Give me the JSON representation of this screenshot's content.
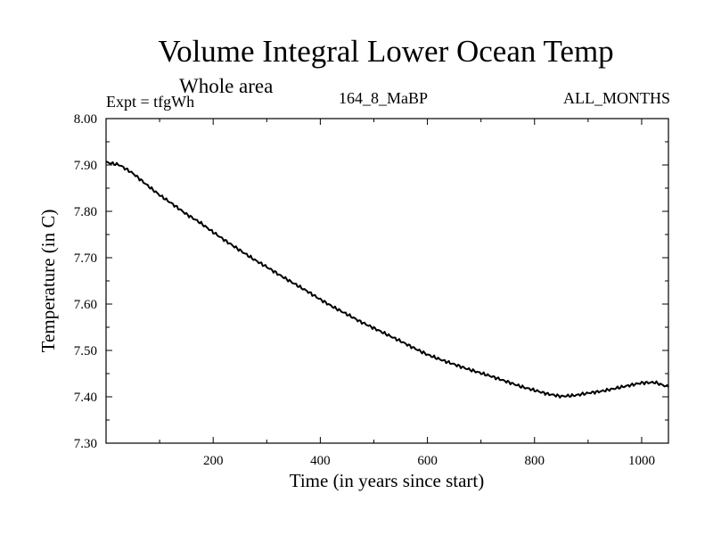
{
  "chart_data": {
    "type": "line",
    "title": "Volume Integral Lower Ocean Temp",
    "subtitle": "Whole area",
    "annotations": {
      "left": "Expt = tfgWh",
      "center": "164_8_MaBP",
      "right": "ALL_MONTHS"
    },
    "xlabel": "Time (in years since start)",
    "ylabel": "Temperature (in C)",
    "xlim": [
      0,
      1050
    ],
    "ylim": [
      7.3,
      8.0
    ],
    "x_ticks": [
      200,
      400,
      600,
      800,
      1000
    ],
    "x_tick_labels": [
      "200",
      "400",
      "600",
      "800",
      "1000"
    ],
    "y_ticks": [
      7.3,
      7.4,
      7.5,
      7.6,
      7.7,
      7.8,
      7.9,
      8.0
    ],
    "y_tick_labels": [
      "7.30",
      "7.40",
      "7.50",
      "7.60",
      "7.70",
      "7.80",
      "7.90",
      "8.00"
    ],
    "grid": false,
    "series": [
      {
        "name": "tfgWh",
        "x": [
          0,
          25,
          50,
          75,
          100,
          125,
          150,
          175,
          200,
          225,
          250,
          275,
          300,
          325,
          350,
          375,
          400,
          425,
          450,
          475,
          500,
          525,
          550,
          575,
          600,
          625,
          650,
          675,
          700,
          725,
          750,
          775,
          800,
          825,
          850,
          875,
          900,
          925,
          950,
          975,
          1000,
          1025,
          1050
        ],
        "values": [
          7.906,
          7.9,
          7.882,
          7.858,
          7.835,
          7.815,
          7.794,
          7.776,
          7.755,
          7.735,
          7.716,
          7.697,
          7.68,
          7.662,
          7.645,
          7.628,
          7.61,
          7.593,
          7.578,
          7.562,
          7.548,
          7.534,
          7.52,
          7.505,
          7.491,
          7.48,
          7.47,
          7.46,
          7.451,
          7.442,
          7.432,
          7.422,
          7.414,
          7.406,
          7.401,
          7.403,
          7.408,
          7.412,
          7.418,
          7.424,
          7.43,
          7.431,
          7.421
        ]
      }
    ]
  }
}
